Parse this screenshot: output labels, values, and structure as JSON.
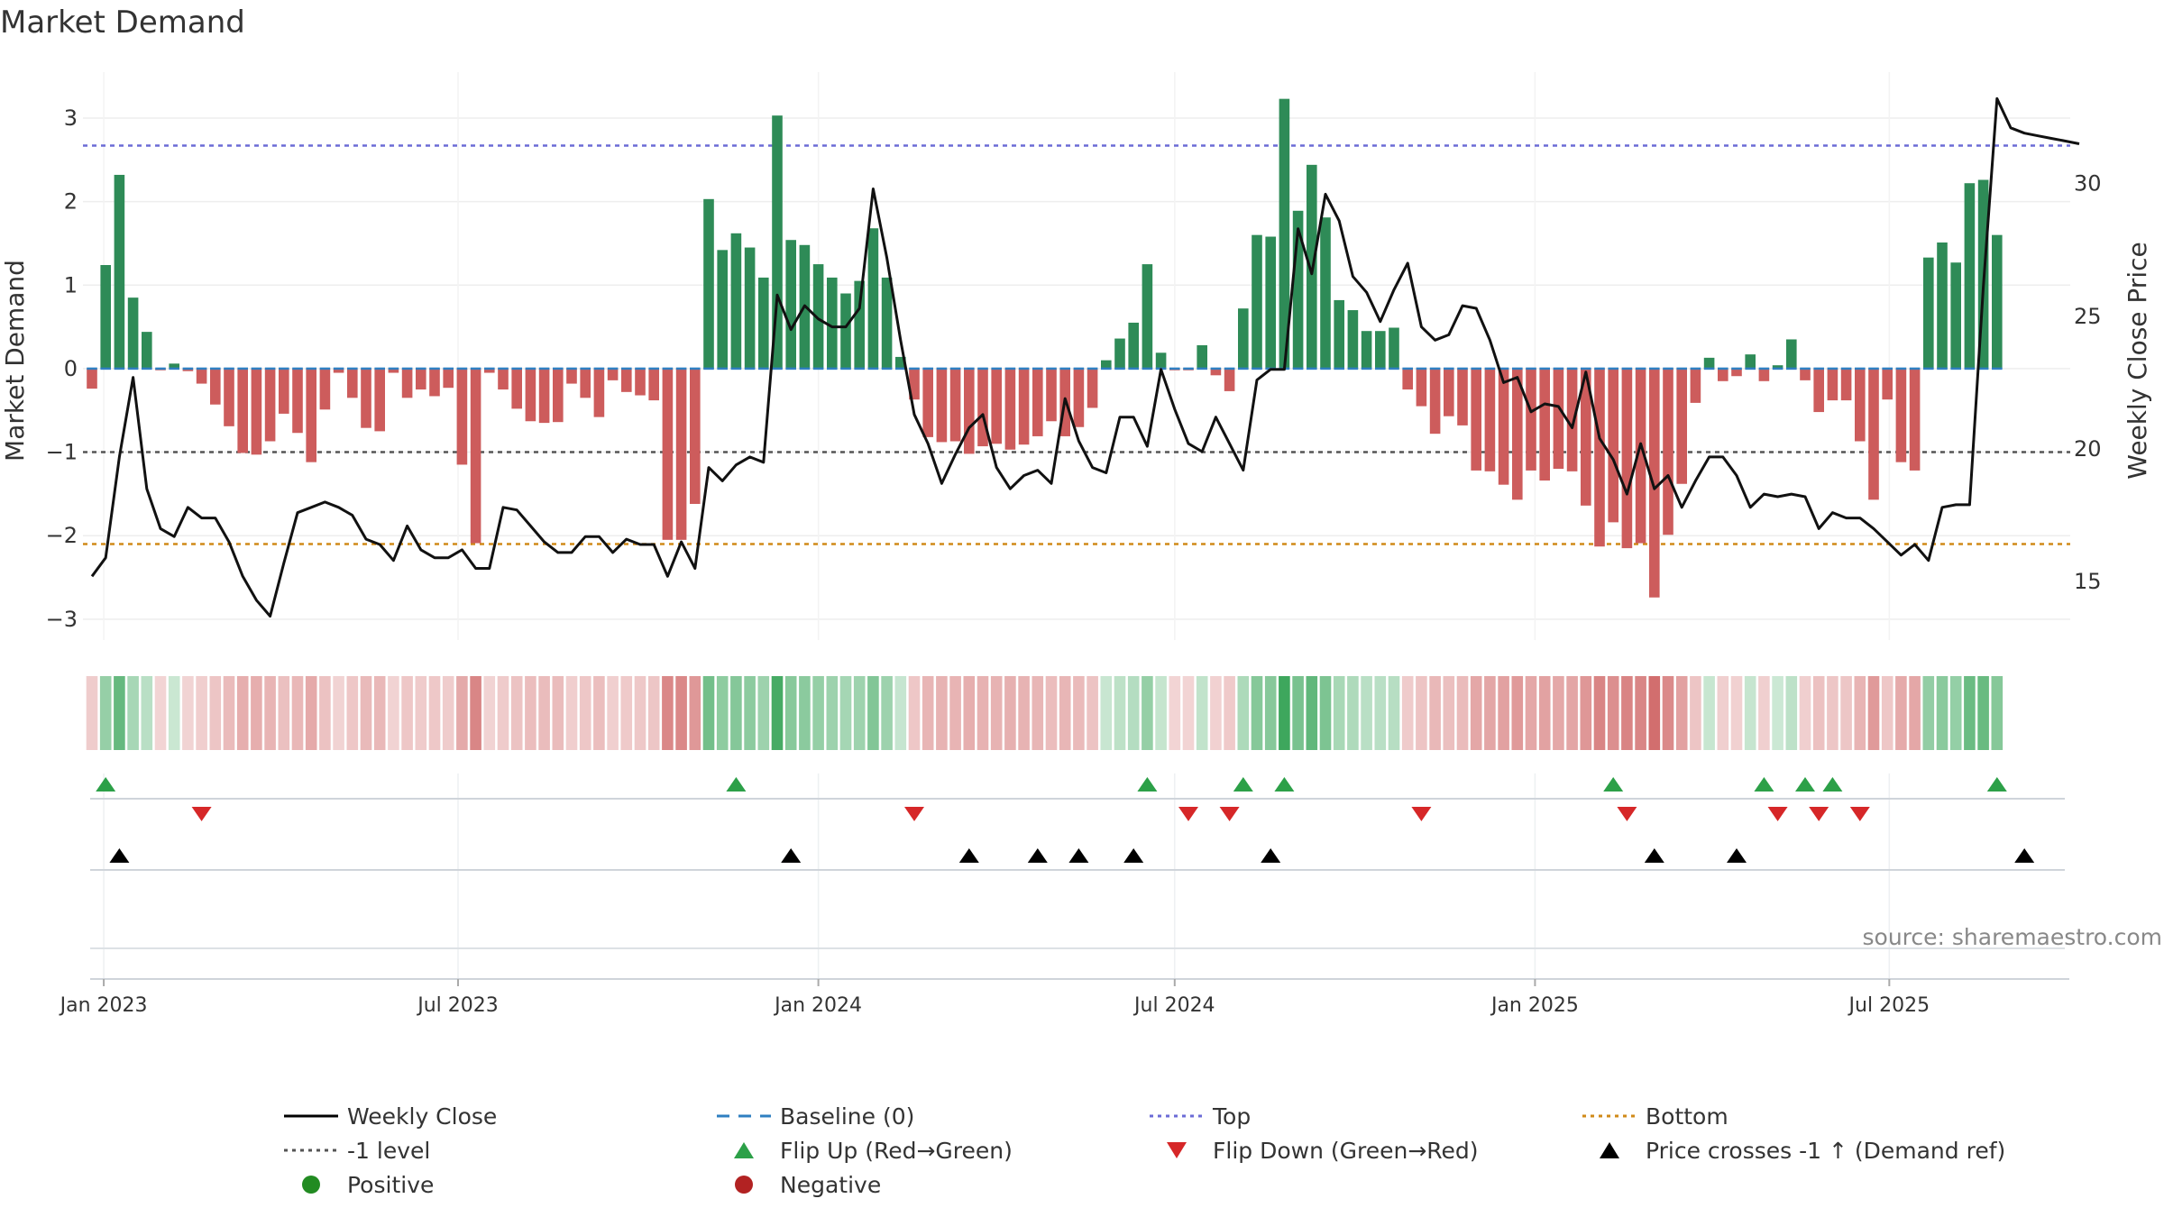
{
  "chart_data": {
    "type": "bar",
    "title": "Market Demand",
    "ylabel": "Market Demand",
    "y2label": "Weekly Close Price",
    "ylim": [
      -3.25,
      3.55
    ],
    "y2lim": [
      12.8,
      34.2
    ],
    "yticks": [
      3,
      2,
      1,
      0,
      -1,
      -2,
      -3
    ],
    "y2ticks": [
      30,
      25,
      20,
      15
    ],
    "ytick_labels": [
      "3",
      "2",
      "1",
      "0",
      "−1",
      "−2",
      "−3"
    ],
    "y2tick_labels": [
      "30",
      "25",
      "20",
      "15"
    ],
    "x_start": "2022-12-26",
    "x_start_label": "Dec 26 2022",
    "week_count": 146,
    "xticks": [
      {
        "label": "Jan 2023",
        "week": 0.86
      },
      {
        "label": "Jul 2023",
        "week": 26.71
      },
      {
        "label": "Jan 2024",
        "week": 53.0
      },
      {
        "label": "Jul 2024",
        "week": 79.0
      },
      {
        "label": "Jan 2025",
        "week": 105.29
      },
      {
        "label": "Jul 2025",
        "week": 131.14
      }
    ],
    "reference_lines": [
      {
        "name": "Top",
        "value": 2.67,
        "color": "#6b6bd6"
      },
      {
        "name": "-1 level",
        "value": -1.0,
        "color": "#555555"
      },
      {
        "name": "Bottom",
        "value": -2.1,
        "color": "#d08a18"
      },
      {
        "name": "Baseline (0)",
        "value": 0,
        "color": "#2f7fc1"
      }
    ],
    "colors": {
      "positive": "#2e8b57",
      "negative": "#cd5c5c",
      "price": "#111111",
      "flip_up": "#2ca048",
      "flip_down": "#d62728",
      "cross": "#000000",
      "legend_positive": "#228b22",
      "legend_negative": "#b22222"
    },
    "series": [
      {
        "name": "Market Demand",
        "values": [
          -0.24,
          1.24,
          2.32,
          0.85,
          0.44,
          -0.02,
          0.06,
          -0.03,
          -0.18,
          -0.43,
          -0.69,
          -1.01,
          -1.03,
          -0.87,
          -0.54,
          -0.77,
          -1.12,
          -0.49,
          -0.05,
          -0.35,
          -0.71,
          -0.75,
          -0.05,
          -0.35,
          -0.25,
          -0.33,
          -0.23,
          -1.15,
          -2.09,
          -0.05,
          -0.25,
          -0.48,
          -0.63,
          -0.65,
          -0.64,
          -0.18,
          -0.35,
          -0.58,
          -0.14,
          -0.28,
          -0.32,
          -0.38,
          -2.05,
          -2.05,
          -1.62,
          2.03,
          1.42,
          1.62,
          1.45,
          1.09,
          3.03,
          1.54,
          1.48,
          1.25,
          1.09,
          0.9,
          1.05,
          1.68,
          1.09,
          0.14,
          -0.37,
          -0.82,
          -0.88,
          -0.87,
          -1.02,
          -0.93,
          -0.9,
          -0.97,
          -0.91,
          -0.81,
          -0.63,
          -0.81,
          -0.7,
          -0.47,
          0.1,
          0.36,
          0.55,
          1.25,
          0.19,
          -0.02,
          -0.02,
          0.28,
          -0.08,
          -0.27,
          0.72,
          1.6,
          1.58,
          3.23,
          1.89,
          2.44,
          1.81,
          0.82,
          0.7,
          0.45,
          0.45,
          0.49,
          -0.25,
          -0.45,
          -0.78,
          -0.57,
          -0.68,
          -1.22,
          -1.23,
          -1.39,
          -1.57,
          -1.22,
          -1.34,
          -1.2,
          -1.23,
          -1.64,
          -2.13,
          -1.84,
          -2.15,
          -2.09,
          -2.74,
          -1.99,
          -1.38,
          -0.41,
          0.13,
          -0.15,
          -0.09,
          0.17,
          -0.15,
          0.04,
          0.35,
          -0.14,
          -0.52,
          -0.38,
          -0.38,
          -0.87,
          -1.57,
          -0.37,
          -1.12,
          -1.22,
          1.33,
          1.51,
          1.27,
          2.22,
          2.26,
          1.6
        ]
      },
      {
        "name": "Weekly Close",
        "values": [
          15.2,
          15.9,
          19.7,
          22.7,
          18.5,
          17.0,
          16.7,
          17.8,
          17.4,
          17.4,
          16.5,
          15.2,
          14.3,
          13.7,
          15.7,
          17.6,
          17.8,
          18.0,
          17.8,
          17.5,
          16.6,
          16.4,
          15.8,
          17.1,
          16.2,
          15.9,
          15.9,
          16.2,
          15.5,
          15.5,
          17.8,
          17.7,
          17.1,
          16.5,
          16.1,
          16.1,
          16.7,
          16.7,
          16.1,
          16.6,
          16.4,
          16.4,
          15.2,
          16.5,
          15.5,
          19.3,
          18.8,
          19.4,
          19.7,
          19.5,
          25.8,
          24.5,
          25.4,
          24.9,
          24.6,
          24.6,
          25.3,
          29.8,
          27.2,
          24.1,
          21.3,
          20.2,
          18.7,
          19.8,
          20.8,
          21.3,
          19.3,
          18.5,
          19.0,
          19.2,
          18.7,
          21.9,
          20.3,
          19.3,
          19.1,
          21.2,
          21.2,
          20.1,
          23.0,
          21.5,
          20.2,
          19.9,
          21.2,
          20.2,
          19.2,
          22.6,
          23.0,
          23.0,
          28.3,
          26.6,
          29.6,
          28.6,
          26.5,
          25.9,
          24.8,
          26.0,
          27.0,
          24.6,
          24.1,
          24.3,
          25.4,
          25.3,
          24.1,
          22.5,
          22.7,
          21.4,
          21.7,
          21.6,
          20.8,
          22.9,
          20.4,
          19.6,
          18.3,
          20.2,
          18.5,
          19.0,
          17.8,
          18.8,
          19.7,
          19.7,
          19.0,
          17.8,
          18.3,
          18.2,
          18.3,
          18.2,
          17.0,
          17.6,
          17.4,
          17.4,
          17.0,
          16.5,
          16.0,
          16.4,
          15.8,
          17.8,
          17.9,
          17.9,
          26.1,
          33.2,
          32.1,
          31.9,
          31.8,
          31.7,
          31.6,
          31.5
        ]
      },
      {
        "name": "Flip Up (Red→Green)",
        "weeks": [
          1,
          47,
          77,
          84,
          87,
          111,
          122,
          125,
          127,
          139
        ]
      },
      {
        "name": "Flip Down (Green→Red)",
        "weeks": [
          8,
          60,
          80,
          83,
          97,
          112,
          123,
          126,
          129
        ]
      },
      {
        "name": "Price crosses -1 ↑ (Demand ref)",
        "weeks": [
          2,
          51,
          64,
          69,
          72,
          76,
          86,
          114,
          120,
          141
        ]
      }
    ],
    "legend_position": "bottom",
    "legend": [
      {
        "label": "Weekly Close",
        "kind": "line",
        "color": "#000000",
        "dash": "solid"
      },
      {
        "label": "Baseline (0)",
        "kind": "line",
        "color": "#2f7fc1",
        "dash": "dashed"
      },
      {
        "label": "Top",
        "kind": "line",
        "color": "#6b6bd6",
        "dash": "dotted"
      },
      {
        "label": "Bottom",
        "kind": "line",
        "color": "#d08a18",
        "dash": "dotted"
      },
      {
        "label": "-1 level",
        "kind": "line",
        "color": "#555555",
        "dash": "dotted"
      },
      {
        "label": "Flip Up (Red→Green)",
        "kind": "triangle-up",
        "color": "#2ca048"
      },
      {
        "label": "Flip Down (Green→Red)",
        "kind": "triangle-down",
        "color": "#d62728"
      },
      {
        "label": "Price crosses -1 ↑ (Demand ref)",
        "kind": "triangle-up",
        "color": "#000000"
      },
      {
        "label": "Positive",
        "kind": "circle",
        "color": "#228b22"
      },
      {
        "label": "Negative",
        "kind": "circle",
        "color": "#b22222"
      }
    ],
    "annotation": "source: sharemaestro.com"
  }
}
